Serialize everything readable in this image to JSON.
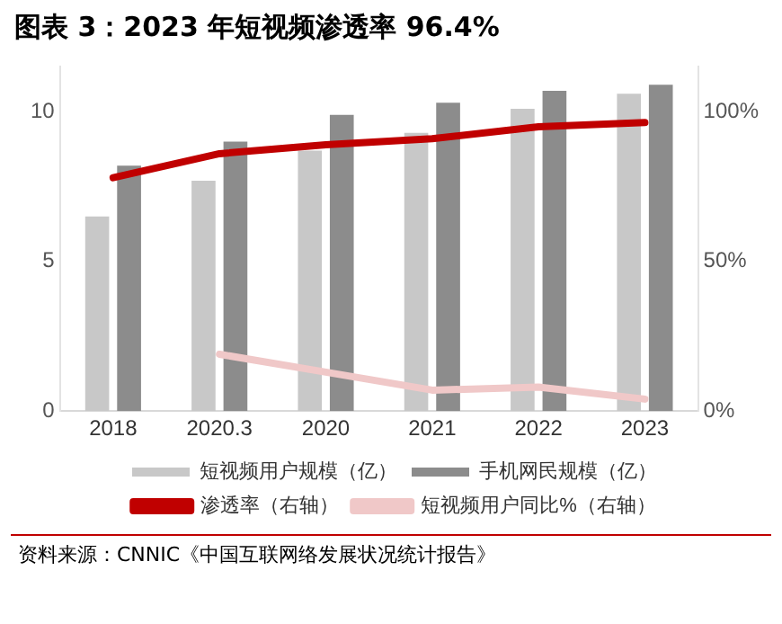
{
  "chart_data": {
    "type": "bar",
    "title": "图表 3：2023 年短视频渗透率 96.4%",
    "categories": [
      "2018",
      "2020.3",
      "2020",
      "2021",
      "2022",
      "2023"
    ],
    "series": [
      {
        "name": "短视频用户规模（亿）",
        "color": "#c8c8c8",
        "values": [
          6.5,
          7.7,
          8.7,
          9.3,
          10.1,
          10.6
        ]
      },
      {
        "name": "手机网民规模（亿）",
        "color": "#8c8c8c",
        "values": [
          8.2,
          9.0,
          9.9,
          10.3,
          10.7,
          10.9
        ]
      },
      {
        "name": "渗透率（右轴）",
        "type": "line",
        "axis": "y2",
        "color": "#c00000",
        "values": [
          78,
          86,
          89,
          91,
          95,
          96.4
        ]
      },
      {
        "name": "短视频用户同比%（右轴）",
        "type": "line",
        "axis": "y2",
        "color": "#f0c8c8",
        "values": [
          null,
          19,
          13,
          7,
          8,
          4
        ]
      }
    ],
    "ylim": [
      0,
      11.5
    ],
    "yticks": [
      0,
      5,
      10
    ],
    "y2lim": [
      0,
      115
    ],
    "y2ticks": [
      {
        "value": 0,
        "label": "0%"
      },
      {
        "value": 50,
        "label": "50%"
      },
      {
        "value": 100,
        "label": "100%"
      }
    ],
    "grid": false,
    "legend": "bottom",
    "annotations": [
      "资料来源：CNNIC《中国互联网络发展状况统计报告》"
    ]
  }
}
